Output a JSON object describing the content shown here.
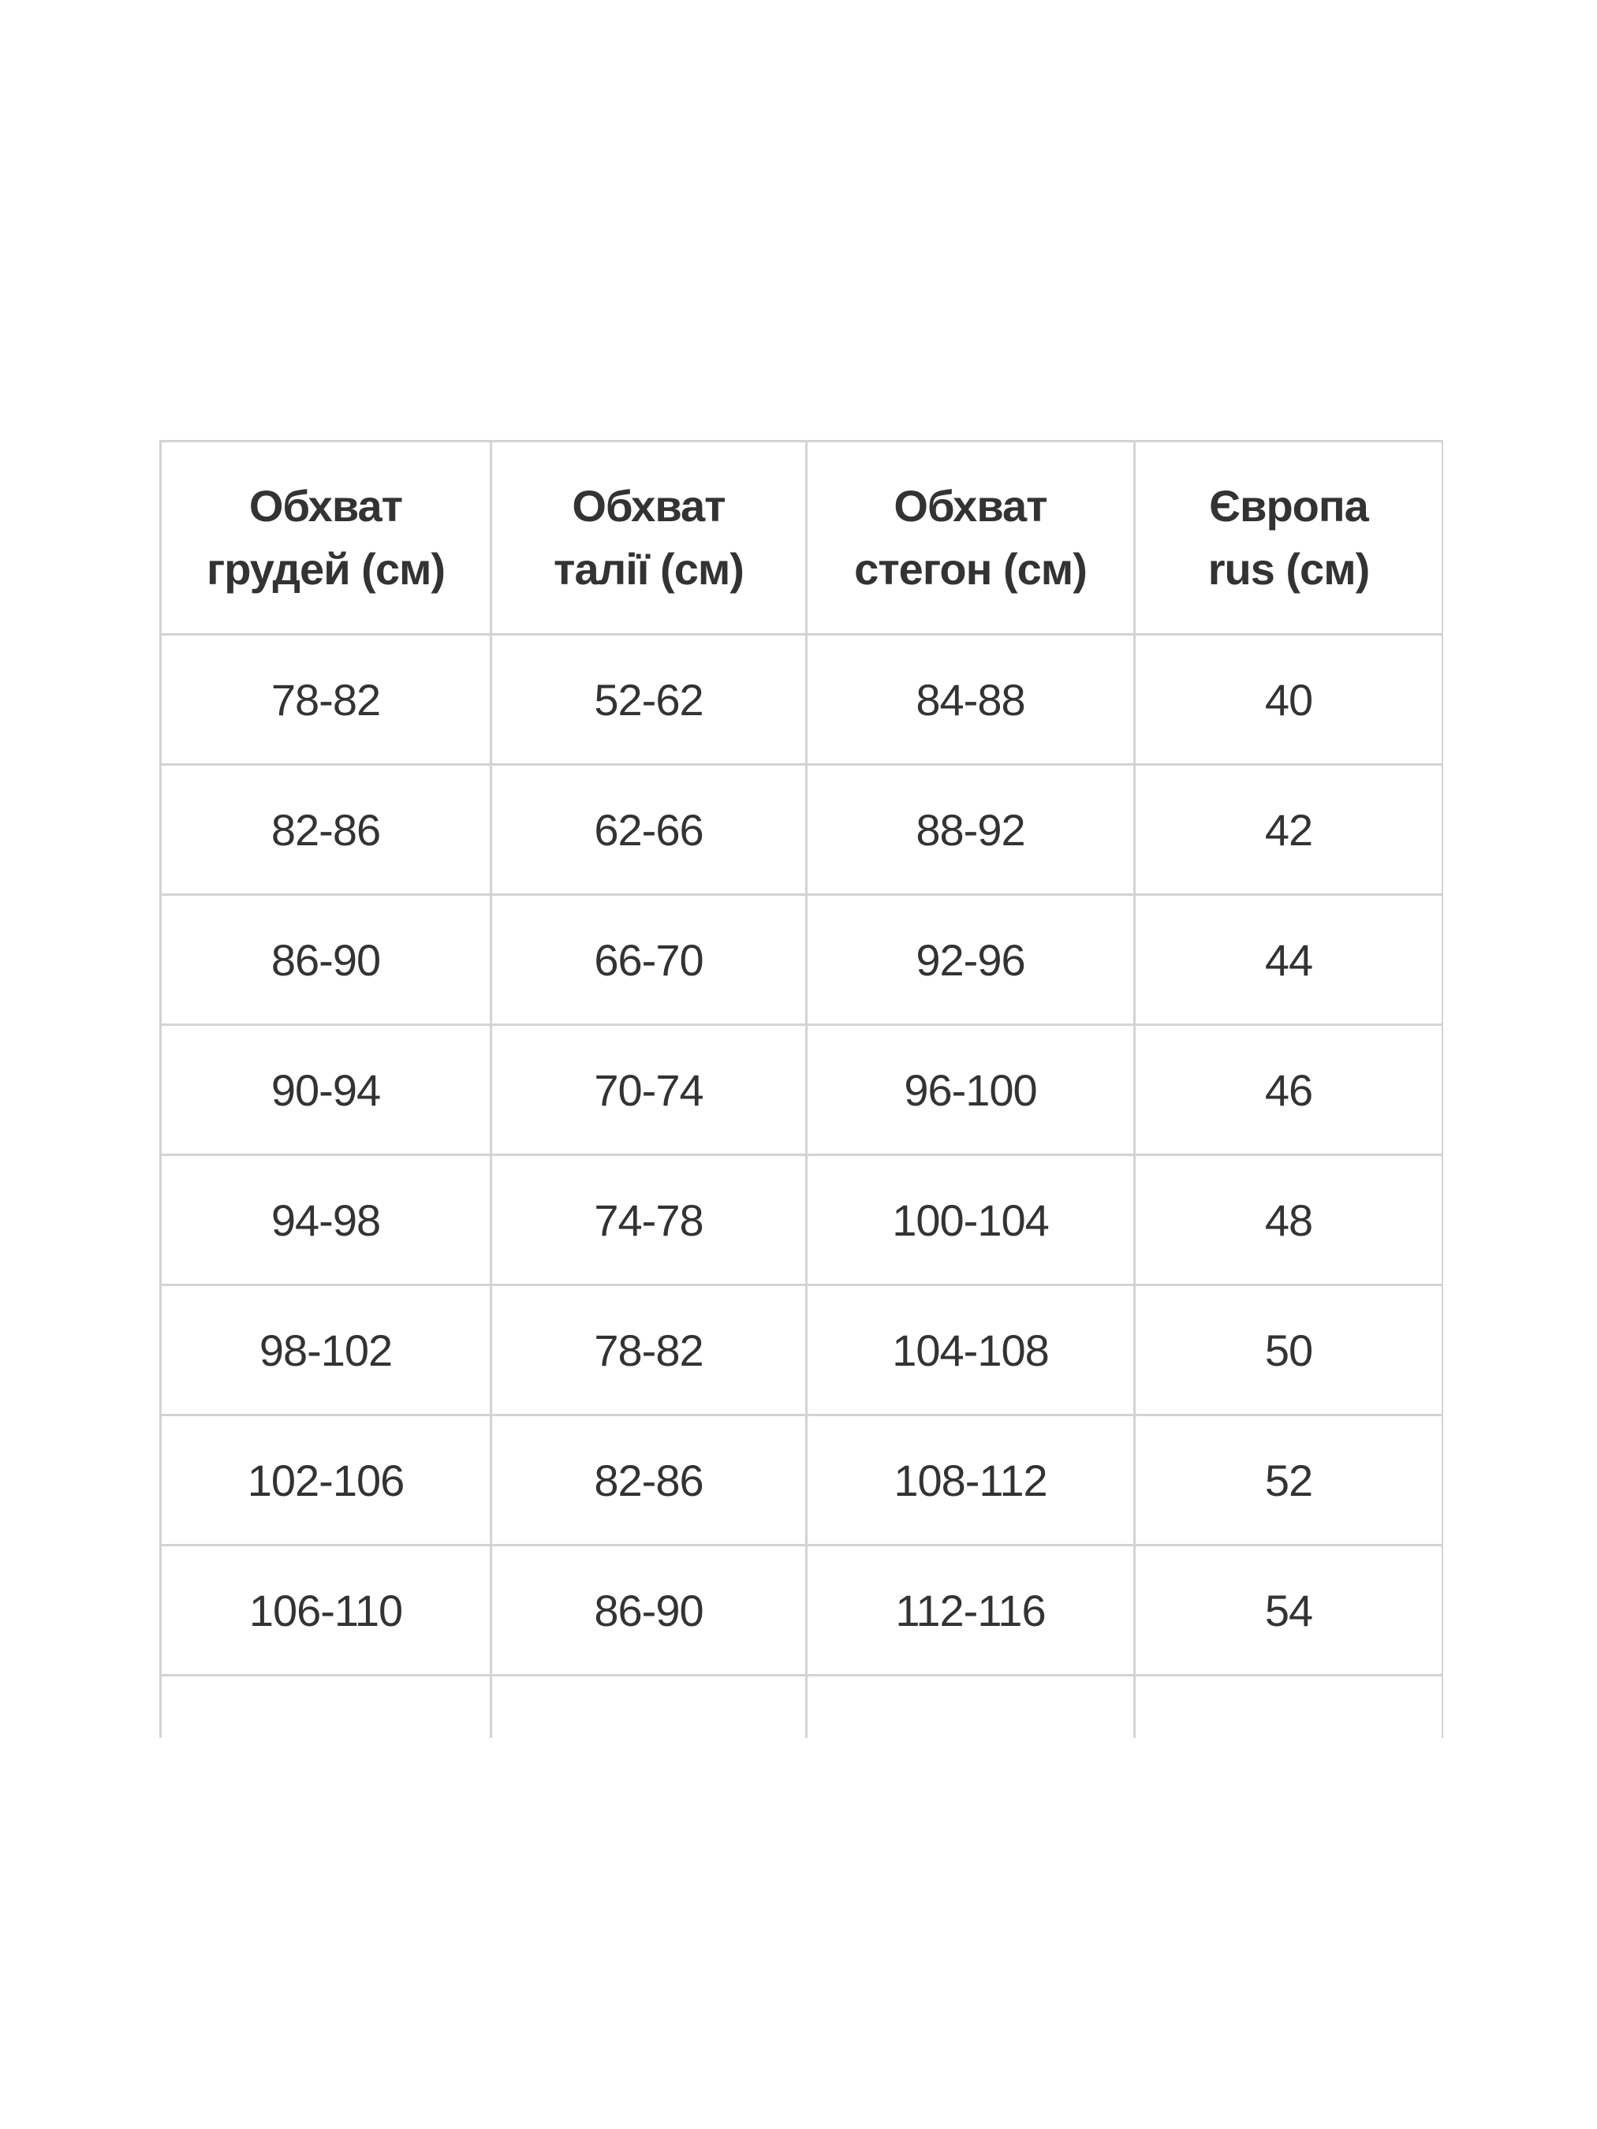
{
  "table": {
    "headers": [
      [
        "Обхват",
        "грудей (см)"
      ],
      [
        "Обхват",
        "талії (см)"
      ],
      [
        "Обхват",
        "стегон (см)"
      ],
      [
        "Європа",
        "rus (см)"
      ]
    ],
    "rows": [
      [
        "78-82",
        "52-62",
        "84-88",
        "40"
      ],
      [
        "82-86",
        "62-66",
        "88-92",
        "42"
      ],
      [
        "86-90",
        "66-70",
        "92-96",
        "44"
      ],
      [
        "90-94",
        "70-74",
        "96-100",
        "46"
      ],
      [
        "94-98",
        "74-78",
        "100-104",
        "48"
      ],
      [
        "98-102",
        "78-82",
        "104-108",
        "50"
      ],
      [
        "102-106",
        "82-86",
        "108-112",
        "52"
      ],
      [
        "106-110",
        "86-90",
        "112-116",
        "54"
      ],
      [
        "",
        "",
        "",
        ""
      ]
    ],
    "border_color": "#d3d3d3",
    "text_color": "#333333"
  }
}
